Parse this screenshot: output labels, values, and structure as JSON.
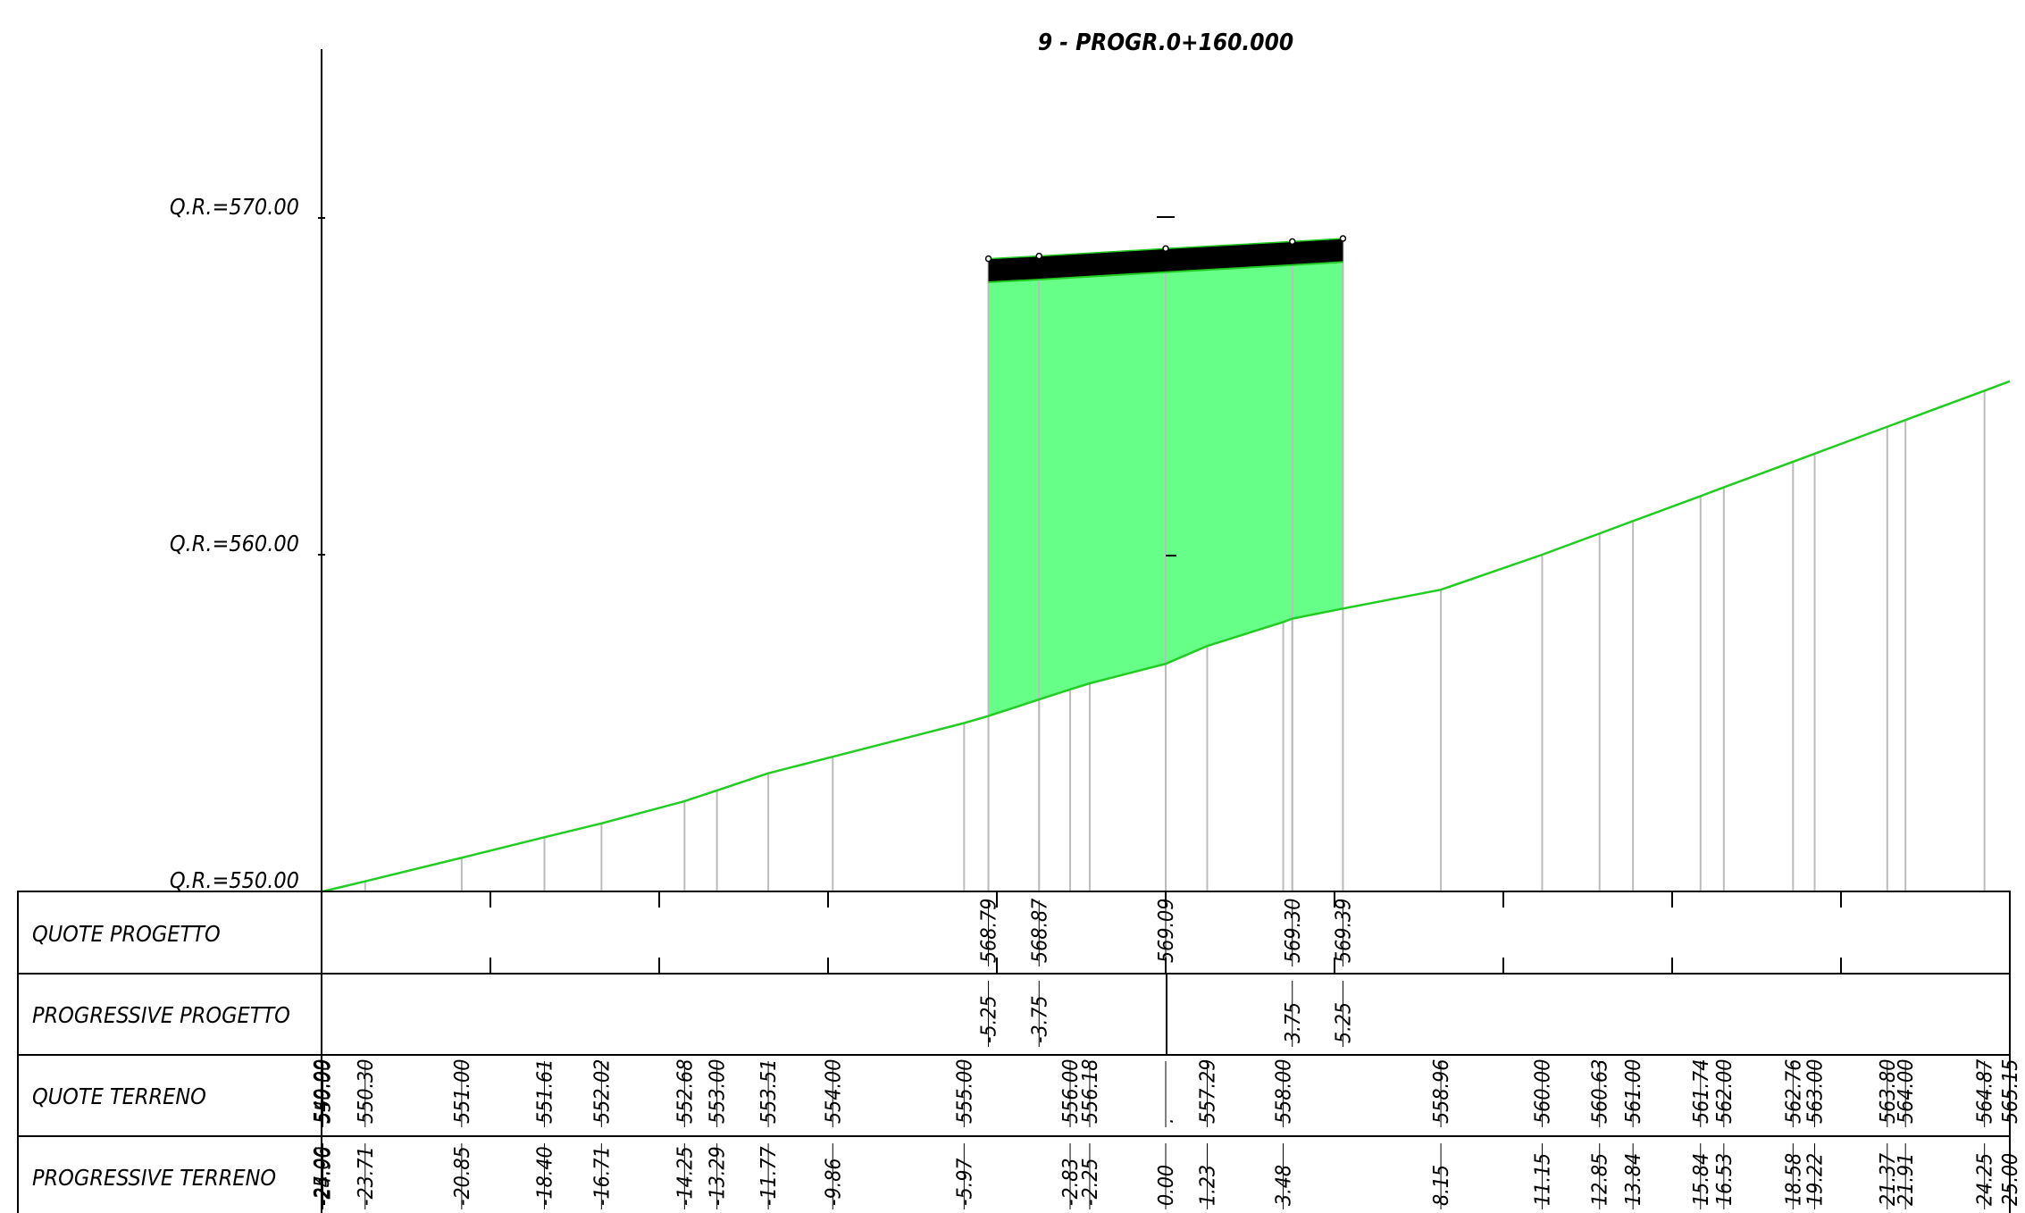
{
  "title": "9 - PROGR.0+160.000",
  "datum_levels": [
    {
      "label": "Q.R.=570.00",
      "value": 570.0
    },
    {
      "label": "Q.R.=560.00",
      "value": 560.0
    },
    {
      "label": "Q.R.=550.00",
      "value": 550.0
    }
  ],
  "rows": [
    {
      "key": "qp",
      "label": "QUOTE PROGETTO"
    },
    {
      "key": "pp",
      "label": "PROGRESSIVE PROGETTO"
    },
    {
      "key": "qt",
      "label": "QUOTE TERRENO"
    },
    {
      "key": "pt",
      "label": "PROGRESSIVE TERRENO"
    }
  ],
  "chart_data": {
    "type": "line",
    "title": "9 - PROGR.0+160.000",
    "xlim": [
      -25.0,
      25.0
    ],
    "ylim": [
      550.0,
      570.0
    ],
    "series": [
      {
        "kind": "terrain",
        "x": [
          -25.0,
          -24.96,
          -23.71,
          -20.85,
          -18.4,
          -16.71,
          -14.25,
          -13.29,
          -11.77,
          -9.86,
          -5.97,
          -5.25,
          -3.75,
          -2.83,
          -2.25,
          0.0,
          1.23,
          3.48,
          3.75,
          5.25,
          8.15,
          11.15,
          12.85,
          13.84,
          15.84,
          16.53,
          18.58,
          19.22,
          21.37,
          21.91,
          24.25,
          25.0
        ],
        "y": [
          549.99,
          550.0,
          550.3,
          551.0,
          551.61,
          552.02,
          552.68,
          553.0,
          553.51,
          554.0,
          555.0,
          555.21,
          555.7,
          556.0,
          556.18,
          556.76,
          557.29,
          558.0,
          558.1,
          558.4,
          558.96,
          560.0,
          560.63,
          561.0,
          561.74,
          562.0,
          562.76,
          563.0,
          563.8,
          564.0,
          564.87,
          565.15
        ]
      },
      {
        "kind": "design",
        "x": [
          -5.25,
          -3.75,
          0.0,
          3.75,
          5.25
        ],
        "y": [
          568.79,
          568.87,
          569.09,
          569.3,
          569.39
        ],
        "pavement_thickness": 0.7
      }
    ],
    "design_levels": [
      "568.79",
      "568.87",
      "569.09",
      "569.30",
      "569.39"
    ],
    "design_offsets": [
      "-5.25",
      "-3.75",
      "3.75",
      "5.25"
    ],
    "terrain_levels": [
      "549.99",
      "550.00",
      "550.30",
      "551.00",
      "551.61",
      "552.02",
      "552.68",
      "553.00",
      "553.51",
      "554.00",
      "555.00",
      "556.00",
      "556.18",
      ".",
      "557.29",
      "558.00",
      "558.96",
      "560.00",
      "560.63",
      "561.00",
      "561.74",
      "562.00",
      "562.76",
      "563.00",
      "563.80",
      "564.00",
      "564.87",
      "565.15"
    ],
    "terrain_level_x": [
      -25.0,
      -24.96,
      -23.71,
      -20.85,
      -18.4,
      -16.71,
      -14.25,
      -13.29,
      -11.77,
      -9.86,
      -5.97,
      -2.83,
      -2.25,
      0.0,
      1.23,
      3.48,
      8.15,
      11.15,
      12.85,
      13.84,
      15.84,
      16.53,
      18.58,
      19.22,
      21.37,
      21.91,
      24.25,
      25.0
    ],
    "terrain_offsets": [
      "-25.00",
      "-24.96",
      "-23.71",
      "-20.85",
      "-18.40",
      "-16.71",
      "-14.25",
      "-13.29",
      "-11.77",
      "-9.86",
      "-5.97",
      "-2.83",
      "-2.25",
      "0.00",
      "1.23",
      "3.48",
      "8.15",
      "11.15",
      "12.85",
      "13.84",
      "15.84",
      "16.53",
      "18.58",
      "19.22",
      "21.37",
      "21.91",
      "24.25",
      "25.00"
    ],
    "terrain_offset_x": [
      -25.0,
      -24.96,
      -23.71,
      -20.85,
      -18.4,
      -16.71,
      -14.25,
      -13.29,
      -11.77,
      -9.86,
      -5.97,
      -2.83,
      -2.25,
      0.0,
      1.23,
      3.48,
      8.15,
      11.15,
      12.85,
      13.84,
      15.84,
      16.53,
      18.58,
      19.22,
      21.37,
      21.91,
      24.25,
      25.0
    ],
    "colors": {
      "fill": "#66ff88",
      "line": "#22cc22",
      "hatch": "#bbbbbb",
      "pavement": "#000000"
    }
  }
}
